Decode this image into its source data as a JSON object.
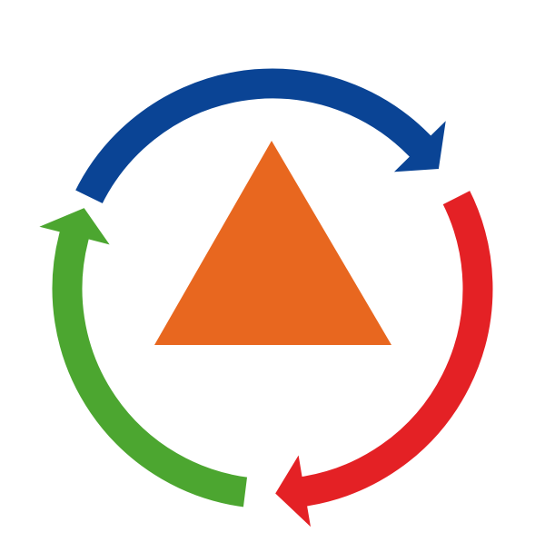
{
  "diagram": {
    "type": "cycle",
    "center_shape": "triangle-icon",
    "colors": {
      "background": "#ffffff",
      "triangle": "#E8671F",
      "arrow_top": "#0A4495",
      "arrow_right": "#E42125",
      "arrow_left": "#4CA630"
    },
    "arrows": [
      {
        "name": "cycle-arrow-top",
        "color_key": "arrow_top",
        "direction": "clockwise"
      },
      {
        "name": "cycle-arrow-right",
        "color_key": "arrow_right",
        "direction": "clockwise"
      },
      {
        "name": "cycle-arrow-left",
        "color_key": "arrow_left",
        "direction": "clockwise"
      }
    ]
  }
}
